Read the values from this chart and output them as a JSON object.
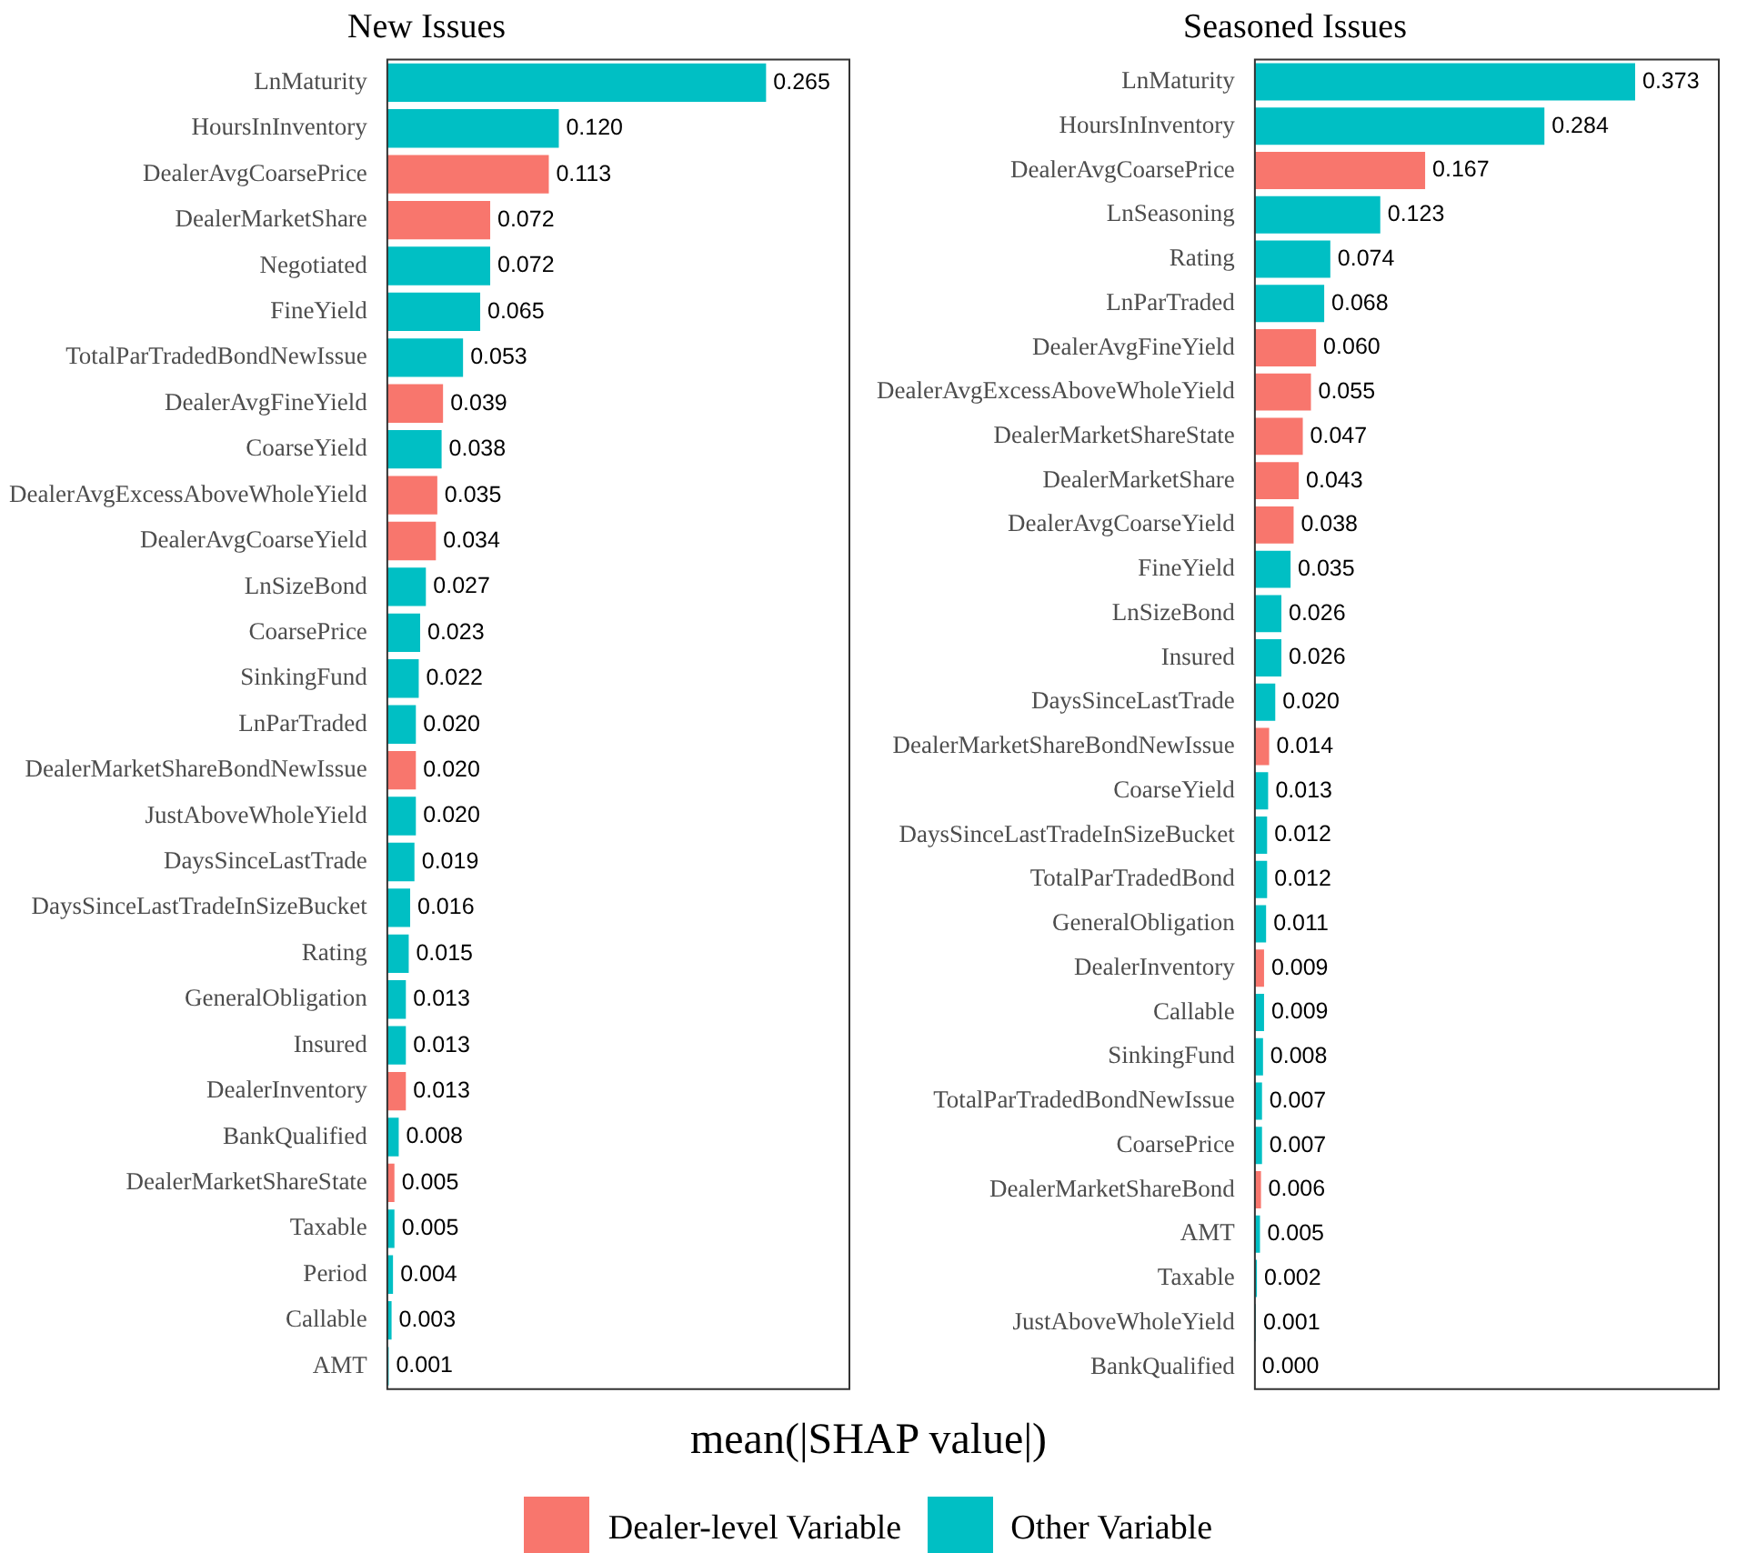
{
  "chart_data": [
    {
      "type": "bar",
      "orientation": "horizontal",
      "stacked": true,
      "title": "New Issues",
      "xlabel": "mean(|SHAP value|)",
      "legend": "bottom",
      "tick_labels": "y",
      "categories": [
        "LnMaturity",
        "HoursInInventory",
        "DealerAvgCoarsePrice",
        "DealerMarketShare",
        "Negotiated",
        "FineYield",
        "TotalParTradedBondNewIssue",
        "DealerAvgFineYield",
        "CoarseYield",
        "DealerAvgExcessAboveWholeYield",
        "DealerAvgCoarseYield",
        "LnSizeBond",
        "CoarsePrice",
        "SinkingFund",
        "LnParTraded",
        "DealerMarketShareBondNewIssue",
        "JustAboveWholeYield",
        "DaysSinceLastTrade",
        "DaysSinceLastTradeInSizeBucket",
        "Rating",
        "GeneralObligation",
        "Insured",
        "DealerInventory",
        "BankQualified",
        "DealerMarketShareState",
        "Taxable",
        "Period",
        "Callable",
        "AMT"
      ],
      "series": [
        {
          "name": "Dealer-level Variable",
          "color": "#f8766d",
          "values": [
            null,
            null,
            0.113,
            0.072,
            null,
            null,
            null,
            0.039,
            null,
            0.035,
            0.034,
            null,
            null,
            null,
            null,
            0.02,
            null,
            null,
            null,
            null,
            null,
            null,
            0.013,
            null,
            0.005,
            null,
            null,
            null,
            null
          ],
          "value_labels": [
            null,
            null,
            "0.113",
            "0.072",
            null,
            null,
            null,
            "0.039",
            null,
            "0.035",
            "0.034",
            null,
            null,
            null,
            null,
            "0.020",
            null,
            null,
            null,
            null,
            null,
            null,
            "0.013",
            null,
            "0.005",
            null,
            null,
            null,
            null
          ]
        },
        {
          "name": "Other Variable",
          "color": "#00bfc4",
          "values": [
            0.265,
            0.12,
            null,
            null,
            0.072,
            0.065,
            0.053,
            null,
            0.038,
            null,
            null,
            0.027,
            0.023,
            0.022,
            0.02,
            null,
            0.02,
            0.019,
            0.016,
            0.015,
            0.013,
            0.013,
            null,
            0.008,
            null,
            0.005,
            0.004,
            0.003,
            0.001
          ],
          "value_labels": [
            "0.265",
            "0.120",
            null,
            null,
            "0.072",
            "0.065",
            "0.053",
            null,
            "0.038",
            null,
            null,
            "0.027",
            "0.023",
            "0.022",
            "0.020",
            null,
            "0.020",
            "0.019",
            "0.016",
            "0.015",
            "0.013",
            "0.013",
            null,
            "0.008",
            null,
            "0.005",
            "0.004",
            "0.003",
            "0.001"
          ]
        }
      ]
    },
    {
      "type": "bar",
      "orientation": "horizontal",
      "stacked": true,
      "title": "Seasoned Issues",
      "tick_labels": "y",
      "categories": [
        "LnMaturity",
        "HoursInInventory",
        "DealerAvgCoarsePrice",
        "LnSeasoning",
        "Rating",
        "LnParTraded",
        "DealerAvgFineYield",
        "DealerAvgExcessAboveWholeYield",
        "DealerMarketShareState",
        "DealerMarketShare",
        "DealerAvgCoarseYield",
        "FineYield",
        "LnSizeBond",
        "Insured",
        "DaysSinceLastTrade",
        "DealerMarketShareBondNewIssue",
        "CoarseYield",
        "DaysSinceLastTradeInSizeBucket",
        "TotalParTradedBond",
        "GeneralObligation",
        "DealerInventory",
        "Callable",
        "SinkingFund",
        "TotalParTradedBondNewIssue",
        "CoarsePrice",
        "DealerMarketShareBond",
        "AMT",
        "Taxable",
        "JustAboveWholeYield",
        "BankQualified"
      ],
      "series": [
        {
          "color": "#f8766d",
          "values": [
            null,
            null,
            0.167,
            null,
            null,
            null,
            0.06,
            0.055,
            0.047,
            0.043,
            0.038,
            null,
            null,
            null,
            null,
            0.014,
            null,
            null,
            null,
            null,
            0.009,
            null,
            null,
            null,
            null,
            0.006,
            null,
            null,
            null,
            null
          ],
          "value_labels": [
            null,
            null,
            "0.167",
            null,
            null,
            null,
            "0.060",
            "0.055",
            "0.047",
            "0.043",
            "0.038",
            null,
            null,
            null,
            null,
            "0.014",
            null,
            null,
            null,
            null,
            "0.009",
            null,
            null,
            null,
            null,
            "0.006",
            null,
            null,
            null,
            null
          ]
        },
        {
          "color": "#00bfc4",
          "values": [
            0.373,
            0.284,
            null,
            0.123,
            0.074,
            0.068,
            null,
            null,
            null,
            null,
            null,
            0.035,
            0.026,
            0.026,
            0.02,
            null,
            0.013,
            0.012,
            0.012,
            0.011,
            null,
            0.009,
            0.008,
            0.007,
            0.007,
            null,
            0.005,
            0.002,
            0.001,
            0.0
          ],
          "value_labels": [
            "0.373",
            "0.284",
            null,
            "0.123",
            "0.074",
            "0.068",
            null,
            null,
            null,
            null,
            null,
            "0.035",
            "0.026",
            "0.026",
            "0.020",
            null,
            "0.013",
            "0.012",
            "0.012",
            "0.011",
            null,
            "0.009",
            "0.008",
            "0.007",
            "0.007",
            null,
            "0.005",
            "0.002",
            "0.001",
            "0.000"
          ]
        }
      ]
    }
  ]
}
